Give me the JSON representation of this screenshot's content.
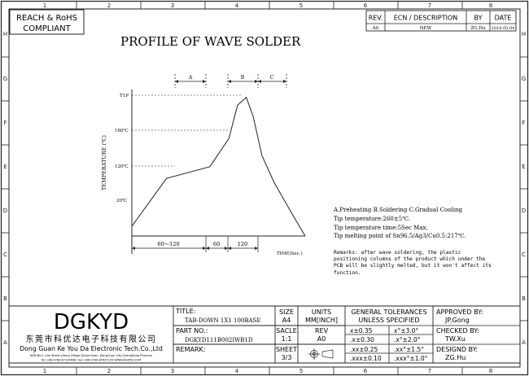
{
  "border": {
    "top_cols": [
      "1",
      "2",
      "3",
      "4",
      "5",
      "6",
      "7",
      "8"
    ],
    "bottom_cols": [
      "1",
      "2",
      "3",
      "4",
      "5",
      "6",
      "7",
      "8"
    ],
    "left_rows": [
      "H",
      "G",
      "F",
      "E",
      "D",
      "C",
      "B",
      "A"
    ],
    "right_rows": [
      "H",
      "G",
      "F",
      "E",
      "D",
      "C",
      "B",
      "A"
    ]
  },
  "compliance": {
    "line1": "REACH & RoHS",
    "line2": "COMPLIANT"
  },
  "revision": {
    "headers": {
      "rev": "REV.",
      "ecn": "ECN / DESCRIPTION",
      "by": "BY",
      "date": "DATE"
    },
    "row": {
      "rev": "A0",
      "ecn": "NEW",
      "by": "ZG.Hu",
      "date": "2018.05.04"
    }
  },
  "page_title": "PROFILE OF WAVE SOLDER",
  "chart_data": {
    "type": "line",
    "xlabel": "TIME(Sec.)",
    "ylabel": "TEMPERATURE (℃)",
    "y_ticks": [
      "T1P",
      "180℃",
      "120℃",
      "20℃"
    ],
    "x_segments": [
      "60～120",
      "60",
      "120"
    ],
    "phase_labels": [
      "A",
      "B",
      "C"
    ],
    "series": [
      {
        "name": "",
        "x": [
          0,
          0.2,
          0.45,
          0.56,
          0.61,
          0.66,
          0.7,
          0.75,
          0.82,
          0.92,
          1.0
        ],
        "y": [
          20,
          118,
          142,
          200,
          268,
          284,
          245,
          165,
          110,
          48,
          0
        ]
      }
    ]
  },
  "notes": {
    "legend": "A.Preheating  B.Soldering  C.Gradual Cooling",
    "line1": "Tip temperature:260±5℃.",
    "line2": "Tip temperature time:5Sec Max.",
    "line3": "Tip melting point of Sn96.5/Ag3/Cu0.5:217℃.",
    "remarks": [
      "Remarks: after wave soldering, the plastic",
      "positioning columns of the product  which under the",
      "PCB will be slightly melted, but it won't affect its",
      "function."
    ]
  },
  "title_block": {
    "logo": "DGKYD",
    "company_cn": "东莞市科优达电子科技有限公司",
    "company_en": "Dong Guan Ke You Da Electronic Tech.Co.,Ltd",
    "address": "ADD:No.1 Lilie Street,Lifeng Village,Qingxi town, DongGuan City,GuangDong Province",
    "contact": "Tel:+86-0769-87334606; Fax:+86-0769-87647129   WWW.DGKYD.COM",
    "title_label": "TITLE:",
    "title_value": "TAB-DOWN 1X1 100BASE",
    "size_label": "SIZE",
    "size_value": "A4",
    "units_label": "UNITS",
    "units_value": "MM[INCH]",
    "part_label": "PART NO.:",
    "part_value": "DGKYD111B002IWB1D",
    "scale_label": "SACLE",
    "scale_value": "1:1",
    "rev_label": "REV",
    "rev_value": "A0",
    "remark_label": "REMARK:",
    "sheet_label": "SHEET",
    "sheet_value": "3/3",
    "tol_title1": "GENERAL TOLERANCES",
    "tol_title2": "UNLESS SPECIFIED",
    "tolerances": [
      [
        "x±0.35",
        "x°±3.0°"
      ],
      [
        ".x±0.30",
        ".x°±2.0°"
      ],
      [
        ".xx±0.25",
        ".xx°±1.5°"
      ],
      [
        ".xxx±0.10",
        ".xxx°±1.0°"
      ]
    ],
    "approved_label": "APPROVED BY:",
    "approved_value": "JP.Gong",
    "checked_label": "CHECKED BY:",
    "checked_value": "TW.Xu",
    "designed_label": "DESIGND BY:",
    "designed_value": "ZG.Hu"
  }
}
